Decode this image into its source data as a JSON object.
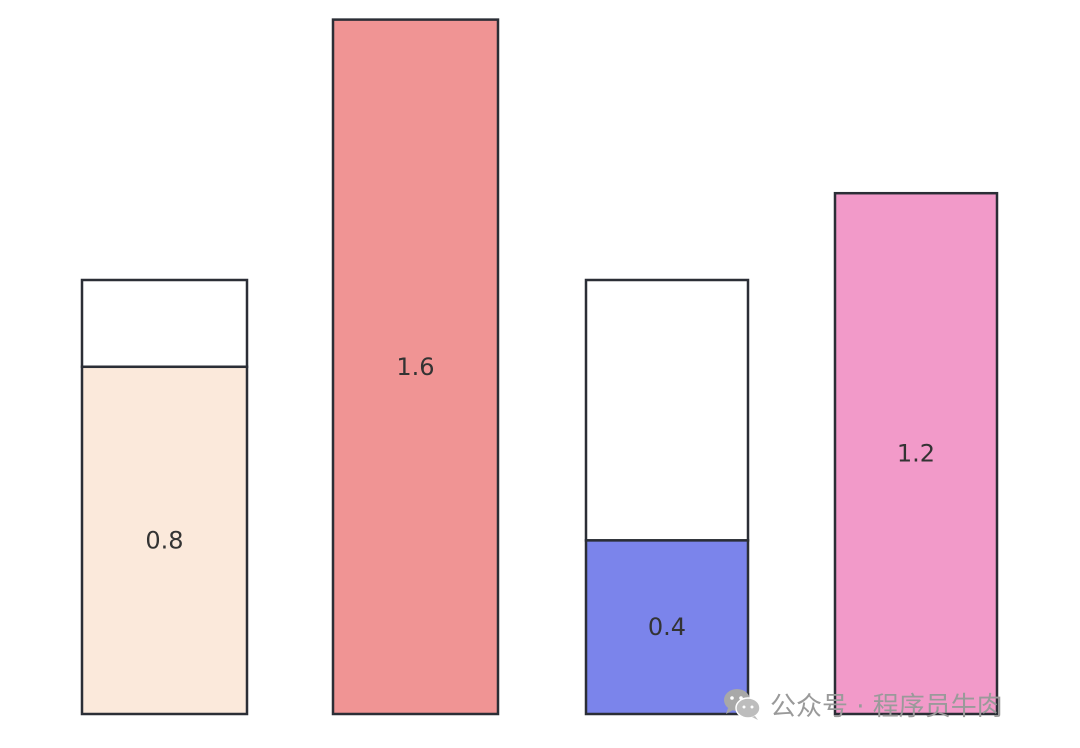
{
  "diagram": {
    "bars": [
      {
        "label": "0.8",
        "value": 0.8,
        "capacity": 1.0,
        "fill_color": "#fbe9db"
      },
      {
        "label": "1.6",
        "value": 1.6,
        "capacity": 1.6,
        "fill_color": "#f09494"
      },
      {
        "label": "0.4",
        "value": 0.4,
        "capacity": 1.0,
        "fill_color": "#7b84eb"
      },
      {
        "label": "1.2",
        "value": 1.2,
        "capacity": 1.2,
        "fill_color": "#f29ac9"
      }
    ],
    "colors": {
      "outline": "#2b2e36",
      "empty": "#ffffff",
      "label_text": "#333333"
    }
  },
  "watermark": {
    "text": "公众号 · 程序员牛肉",
    "icon": "wechat-icon",
    "color": "#9a9a9a"
  }
}
